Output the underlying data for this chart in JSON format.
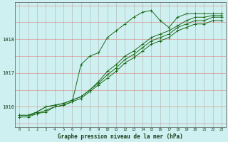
{
  "title": "Graphe pression niveau de la mer (hPa)",
  "bg_color": "#cff0f0",
  "line_color": "#1a6b1a",
  "grid_color_x": "#b0b0b0",
  "grid_color_y": "#e08080",
  "xlim": [
    -0.5,
    23.5
  ],
  "ylim": [
    1015.4,
    1019.1
  ],
  "yticks": [
    1016,
    1017,
    1018
  ],
  "xticks": [
    0,
    1,
    2,
    3,
    4,
    5,
    6,
    7,
    8,
    9,
    10,
    11,
    12,
    13,
    14,
    15,
    16,
    17,
    18,
    19,
    20,
    21,
    22,
    23
  ],
  "series": [
    [
      1015.75,
      1015.75,
      1015.8,
      1015.85,
      1016.0,
      1016.05,
      1016.15,
      1017.25,
      1017.5,
      1017.6,
      1018.05,
      1018.25,
      1018.45,
      1018.65,
      1018.8,
      1018.85,
      1018.55,
      1018.35,
      1018.65,
      1018.75,
      1018.75,
      1018.75,
      1018.75,
      1018.75
    ],
    [
      1015.75,
      1015.75,
      1015.85,
      1016.0,
      1016.05,
      1016.1,
      1016.2,
      1016.3,
      1016.5,
      1016.75,
      1017.05,
      1017.25,
      1017.5,
      1017.65,
      1017.85,
      1018.05,
      1018.15,
      1018.25,
      1018.4,
      1018.55,
      1018.65,
      1018.65,
      1018.7,
      1018.7
    ],
    [
      1015.75,
      1015.75,
      1015.85,
      1016.0,
      1016.05,
      1016.1,
      1016.2,
      1016.3,
      1016.5,
      1016.7,
      1016.95,
      1017.15,
      1017.4,
      1017.55,
      1017.75,
      1017.95,
      1018.05,
      1018.15,
      1018.35,
      1018.45,
      1018.55,
      1018.55,
      1018.65,
      1018.65
    ],
    [
      1015.7,
      1015.7,
      1015.8,
      1015.9,
      1016.0,
      1016.05,
      1016.15,
      1016.25,
      1016.45,
      1016.65,
      1016.85,
      1017.05,
      1017.3,
      1017.45,
      1017.65,
      1017.85,
      1017.95,
      1018.05,
      1018.25,
      1018.35,
      1018.45,
      1018.45,
      1018.55,
      1018.55
    ]
  ]
}
